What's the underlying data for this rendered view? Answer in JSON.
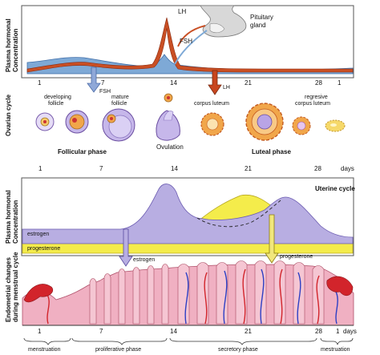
{
  "top": {
    "y_label_1": "Plasma hormonal",
    "y_label_2": "Concentration",
    "pituitary_label_1": "Pituitary",
    "pituitary_label_2": "gland",
    "lh_label": "LH",
    "fsh_label": "FSH",
    "fsh_arrow_label": "FSH",
    "lh_arrow_label": "LH",
    "day_ticks": [
      "1",
      "7",
      "14",
      "21",
      "28",
      "1"
    ]
  },
  "ovarian": {
    "side_label": "Ovarian cycle",
    "stages": {
      "developing": [
        "developing",
        "follicle"
      ],
      "mature": [
        "mature",
        "follicle"
      ],
      "corpus_luteum": "corpus luteum",
      "regressive": [
        "regresive",
        "corpus luteum"
      ],
      "ovulation": "Ovulation"
    },
    "follicular_phase": "Follicular phase",
    "luteal_phase": "Luteal phase",
    "day_ticks": [
      "1",
      "7",
      "14",
      "21",
      "28"
    ],
    "days_unit": "days"
  },
  "uterine": {
    "title": "Uterine cycle",
    "y_label_1": "Plasma hormonal",
    "y_label_2": "Concentration",
    "estrogen_band": "estrogen",
    "progesterone_band": "progesterone",
    "estrogen_arrow": "estrogen",
    "progesterone_arrow": "progesterone"
  },
  "endometrium": {
    "side_label_1": "Endometrial changes",
    "side_label_2": "during menstrual cycle",
    "day_ticks": [
      "1",
      "7",
      "14",
      "21",
      "28",
      "1"
    ],
    "days_unit": "days",
    "phases": [
      "menstruation",
      "proliferative phase",
      "secretory phase",
      "mestruation"
    ]
  },
  "colors": {
    "frame": "#555555",
    "lh_fill": "#c94f24",
    "fsh_fill": "#7ea9d6",
    "estrogen": "#b8aee2",
    "progesterone": "#f4ec4b",
    "follicle": "#c6b7ea",
    "corpus_luteum": "#f1a64a",
    "arrow_red": "#c8461f",
    "arrow_blue": "#8fa8d8",
    "arrow_yellow": "#f1e77c",
    "endometrium_pink": "#f0b0c2",
    "vessel_red": "#d2242b",
    "vessel_blue": "#2d3fc4"
  }
}
